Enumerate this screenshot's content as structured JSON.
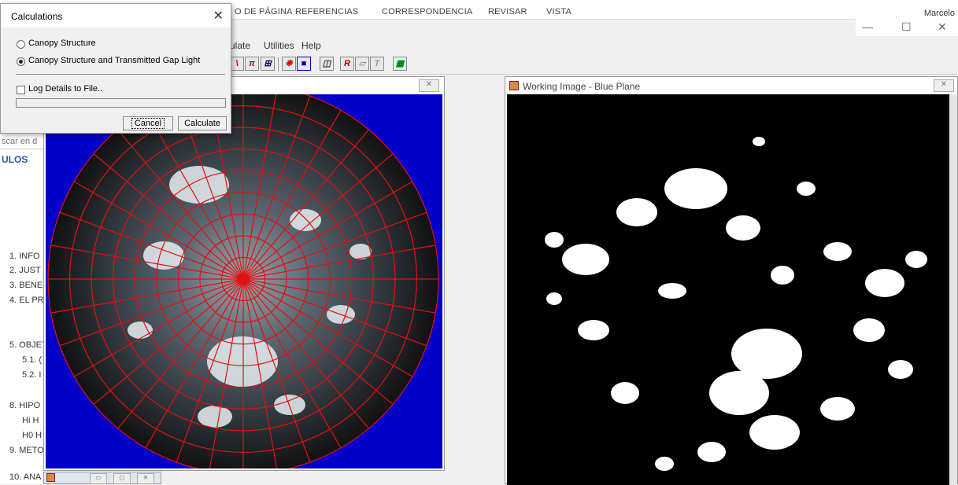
{
  "word": {
    "ribbon_tabs": [
      "O DE PÁGINA",
      "REFERENCIAS",
      "CORRESPONDENCIA",
      "REVISAR",
      "VISTA"
    ],
    "user": "Marcelo",
    "window_controls": [
      "—",
      "☐",
      "✕"
    ],
    "search_fragment": "scar en d",
    "nav_heading": "ULOS",
    "nav_items": [
      "1. INFO",
      "2. JUST",
      "3. BENE",
      "4. EL PR",
      "5. OBJET",
      "5.1. (",
      "5.2. I",
      "8. HIPO",
      "Hi H",
      "H0 H",
      "9. METO",
      "10. ANA"
    ]
  },
  "app": {
    "menu": [
      "ulate",
      "Utilities",
      "Help"
    ],
    "toolbar_buttons": [
      "\\",
      "π",
      "⊞",
      "❋",
      "■",
      "◫",
      "R",
      "▱",
      "T",
      "▦"
    ]
  },
  "left_window": {
    "close_label": "✕"
  },
  "right_window": {
    "title": "Working Image  - Blue Plane",
    "close_label": "✕"
  },
  "dialog": {
    "title": "Calculations",
    "close": "✕",
    "option1": "Canopy Structure",
    "option2": "Canopy Structure and Transmitted Gap Light",
    "selected_option": 2,
    "log_label": "Log Details to File..",
    "log_checked": false,
    "cancel": "Cancel",
    "calculate": "Calculate"
  },
  "mini_window": {
    "buttons": [
      "▭",
      "◻",
      "✕"
    ]
  },
  "colors": {
    "canvas_blue": "#0000c8",
    "grid_red": "#e01010",
    "word_blue": "#2b579a"
  }
}
